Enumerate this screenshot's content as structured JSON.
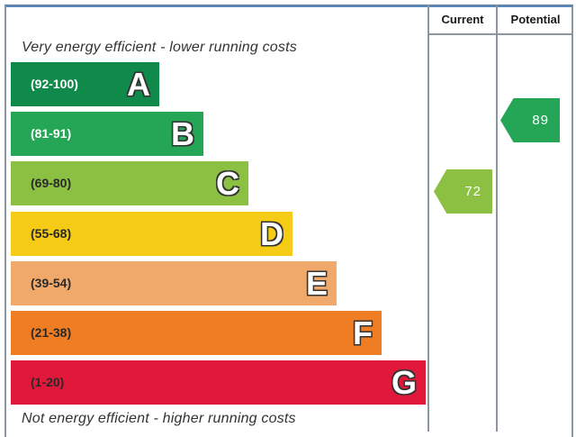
{
  "chart_data": {
    "type": "bar",
    "title": "",
    "headers": {
      "current": "Current",
      "potential": "Potential"
    },
    "top_note": "Very energy efficient - lower running costs",
    "bottom_note": "Not energy efficient - higher running costs",
    "bands": [
      {
        "letter": "A",
        "range": "(92-100)",
        "min": 92,
        "max": 100,
        "color": "#0f8a4b"
      },
      {
        "letter": "B",
        "range": "(81-91)",
        "min": 81,
        "max": 91,
        "color": "#25a556"
      },
      {
        "letter": "C",
        "range": "(69-80)",
        "min": 69,
        "max": 80,
        "color": "#8cc043"
      },
      {
        "letter": "D",
        "range": "(55-68)",
        "min": 55,
        "max": 68,
        "color": "#f5cb16"
      },
      {
        "letter": "E",
        "range": "(39-54)",
        "min": 39,
        "max": 54,
        "color": "#f0a96b"
      },
      {
        "letter": "F",
        "range": "(21-38)",
        "min": 21,
        "max": 38,
        "color": "#ee7d23"
      },
      {
        "letter": "G",
        "range": "(1-20)",
        "min": 1,
        "max": 20,
        "color": "#e2183a"
      }
    ],
    "current": {
      "value": "72",
      "band": "C",
      "color": "#8cc043"
    },
    "potential": {
      "value": "89",
      "band": "B",
      "color": "#25a556"
    }
  }
}
